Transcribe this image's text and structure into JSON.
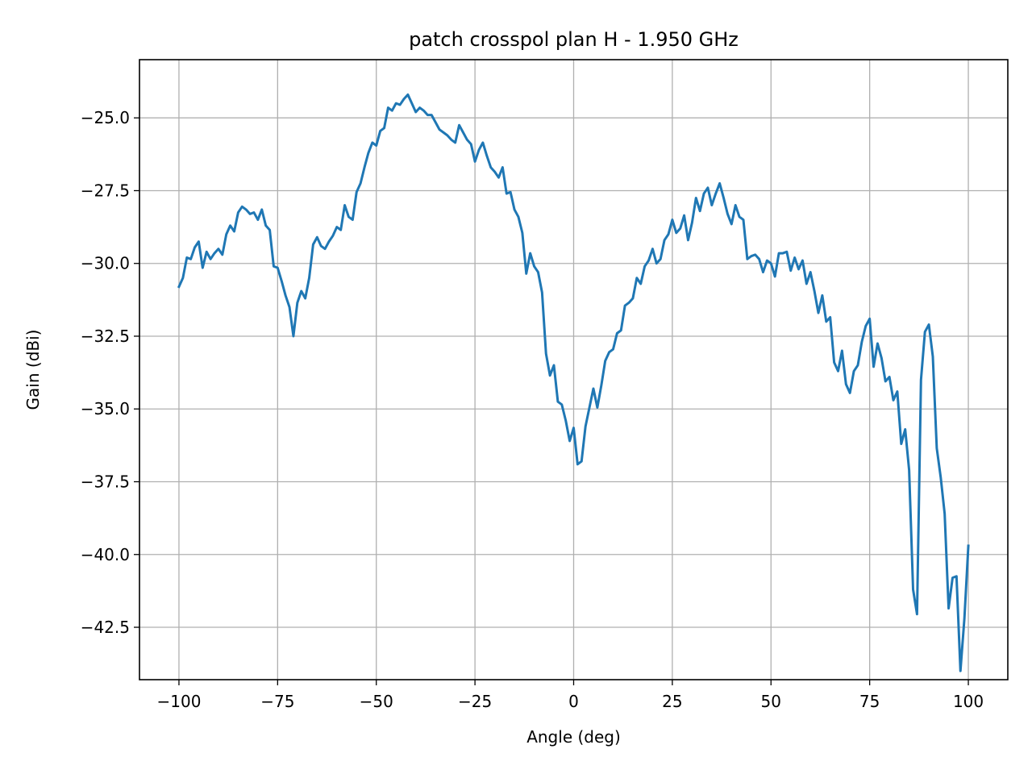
{
  "chart_data": {
    "type": "line",
    "title": "patch crosspol plan H - 1.950 GHz",
    "xlabel": "Angle (deg)",
    "ylabel": "Gain (dBi)",
    "xlim": [
      -110,
      110
    ],
    "ylim": [
      -44.3,
      -23.0
    ],
    "xticks": [
      -100,
      -75,
      -50,
      -25,
      0,
      25,
      50,
      75,
      100
    ],
    "yticks": [
      -25.0,
      -27.5,
      -30.0,
      -32.5,
      -35.0,
      -37.5,
      -40.0,
      -42.5
    ],
    "xtick_labels": [
      "−100",
      "−75",
      "−50",
      "−25",
      "0",
      "25",
      "50",
      "75",
      "100"
    ],
    "ytick_labels": [
      "−25.0",
      "−27.5",
      "−30.0",
      "−32.5",
      "−35.0",
      "−37.5",
      "−40.0",
      "−42.5"
    ],
    "grid": true,
    "line_color": "#1f77b4",
    "series": [
      {
        "x": [
          -100,
          -99,
          -98,
          -97,
          -96,
          -95,
          -94,
          -93,
          -92,
          -91,
          -90,
          -89,
          -88,
          -87,
          -86,
          -85,
          -84,
          -83,
          -82,
          -81,
          -80,
          -79,
          -78,
          -77,
          -76,
          -75,
          -74,
          -73,
          -72,
          -71,
          -70,
          -69,
          -68,
          -67,
          -66,
          -65,
          -64,
          -63,
          -62,
          -61,
          -60,
          -59,
          -58,
          -57,
          -56,
          -55,
          -54,
          -53,
          -52,
          -51,
          -50,
          -49,
          -48,
          -47,
          -46,
          -45,
          -44,
          -43,
          -42,
          -41,
          -40,
          -39,
          -38,
          -37,
          -36,
          -35,
          -34,
          -33,
          -32,
          -31,
          -30,
          -29,
          -28,
          -27,
          -26,
          -25,
          -24,
          -23,
          -22,
          -21,
          -20,
          -19,
          -18,
          -17,
          -16,
          -15,
          -14,
          -13,
          -12,
          -11,
          -10,
          -9,
          -8,
          -7,
          -6,
          -5,
          -4,
          -3,
          -2,
          -1,
          0,
          1,
          2,
          3,
          4,
          5,
          6,
          7,
          8,
          9,
          10,
          11,
          12,
          13,
          14,
          15,
          16,
          17,
          18,
          19,
          20,
          21,
          22,
          23,
          24,
          25,
          26,
          27,
          28,
          29,
          30,
          31,
          32,
          33,
          34,
          35,
          36,
          37,
          38,
          39,
          40,
          41,
          42,
          43,
          44,
          45,
          46,
          47,
          48,
          49,
          50,
          51,
          52,
          53,
          54,
          55,
          56,
          57,
          58,
          59,
          60,
          61,
          62,
          63,
          64,
          65,
          66,
          67,
          68,
          69,
          70,
          71,
          72,
          73,
          74,
          75,
          76,
          77,
          78,
          79,
          80,
          81,
          82,
          83,
          84,
          85,
          86,
          87,
          88,
          89,
          90,
          91,
          92,
          93,
          94,
          95,
          96,
          97,
          98,
          99,
          100
        ],
        "y": [
          -30.8,
          -30.5,
          -29.8,
          -29.85,
          -29.45,
          -29.25,
          -30.15,
          -29.6,
          -29.85,
          -29.65,
          -29.5,
          -29.7,
          -29.0,
          -28.7,
          -28.9,
          -28.25,
          -28.05,
          -28.15,
          -28.3,
          -28.25,
          -28.5,
          -28.15,
          -28.7,
          -28.85,
          -30.1,
          -30.15,
          -30.6,
          -31.1,
          -31.5,
          -32.5,
          -31.35,
          -30.95,
          -31.2,
          -30.5,
          -29.35,
          -29.1,
          -29.4,
          -29.5,
          -29.25,
          -29.05,
          -28.75,
          -28.85,
          -28.0,
          -28.4,
          -28.5,
          -27.55,
          -27.25,
          -26.7,
          -26.2,
          -25.85,
          -25.95,
          -25.45,
          -25.35,
          -24.65,
          -24.75,
          -24.5,
          -24.55,
          -24.35,
          -24.2,
          -24.5,
          -24.8,
          -24.65,
          -24.75,
          -24.9,
          -24.9,
          -25.15,
          -25.4,
          -25.5,
          -25.6,
          -25.75,
          -25.85,
          -25.25,
          -25.5,
          -25.75,
          -25.9,
          -26.5,
          -26.1,
          -25.85,
          -26.3,
          -26.7,
          -26.85,
          -27.05,
          -26.7,
          -27.6,
          -27.55,
          -28.15,
          -28.4,
          -28.95,
          -30.35,
          -29.65,
          -30.1,
          -30.3,
          -31.0,
          -33.1,
          -33.85,
          -33.5,
          -34.75,
          -34.85,
          -35.4,
          -36.1,
          -35.65,
          -36.9,
          -36.8,
          -35.6,
          -34.95,
          -34.3,
          -34.95,
          -34.2,
          -33.35,
          -33.05,
          -32.95,
          -32.4,
          -32.3,
          -31.45,
          -31.35,
          -31.2,
          -30.5,
          -30.7,
          -30.1,
          -29.9,
          -29.5,
          -30.0,
          -29.85,
          -29.2,
          -29.0,
          -28.5,
          -28.95,
          -28.8,
          -28.35,
          -29.2,
          -28.6,
          -27.75,
          -28.2,
          -27.6,
          -27.4,
          -28.0,
          -27.6,
          -27.25,
          -27.75,
          -28.3,
          -28.65,
          -28.0,
          -28.4,
          -28.5,
          -29.85,
          -29.75,
          -29.7,
          -29.85,
          -30.3,
          -29.9,
          -30.0,
          -30.45,
          -29.65,
          -29.65,
          -29.6,
          -30.25,
          -29.8,
          -30.2,
          -29.9,
          -30.7,
          -30.3,
          -30.95,
          -31.7,
          -31.1,
          -32.0,
          -31.85,
          -33.4,
          -33.7,
          -33.0,
          -34.15,
          -34.45,
          -33.7,
          -33.5,
          -32.7,
          -32.15,
          -31.9,
          -33.55,
          -32.75,
          -33.25,
          -34.05,
          -33.9,
          -34.7,
          -34.4,
          -36.2,
          -35.7,
          -37.1,
          -41.2,
          -42.05,
          -34.0,
          -32.35,
          -32.1,
          -33.2,
          -36.35,
          -37.35,
          -38.6,
          -41.85,
          -40.8,
          -40.75,
          -44.0,
          -42.2,
          -39.7
        ]
      }
    ]
  }
}
